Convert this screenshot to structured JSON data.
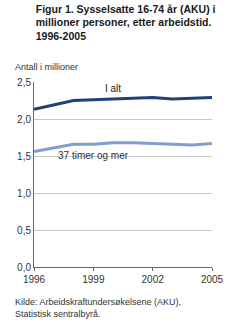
{
  "chart_data": {
    "type": "line",
    "title": "Figur 1. Sysselsatte 16-74 år (AKU) i millioner personer, etter arbeidstid. 1996-2005",
    "ylabel": "Antall i millioner",
    "source": "Kilde: Arbeidskraftundersøkelsene (AKU), Statistisk sentralbyrå.",
    "x": [
      1996,
      1997,
      1998,
      1999,
      2000,
      2001,
      2002,
      2003,
      2004,
      2005
    ],
    "series": [
      {
        "name": "I alt",
        "color": "#1f3f7a",
        "values": [
          2.13,
          2.19,
          2.25,
          2.26,
          2.27,
          2.28,
          2.29,
          2.27,
          2.28,
          2.29
        ]
      },
      {
        "name": "37 timer og mer",
        "color": "#7f9fcf",
        "values": [
          1.56,
          1.61,
          1.66,
          1.66,
          1.68,
          1.68,
          1.67,
          1.65,
          1.65,
          1.67
        ]
      }
    ],
    "xlim": [
      1996,
      2005
    ],
    "xticks": [
      1996,
      1999,
      2002,
      2005
    ],
    "ylim": [
      0,
      2.5
    ],
    "yticks": [
      {
        "value": 0,
        "label": "0,0"
      },
      {
        "value": 0.5,
        "label": "0,5"
      },
      {
        "value": 1.0,
        "label": "1,0"
      },
      {
        "value": 1.5,
        "label": "1,5"
      },
      {
        "value": 2.0,
        "label": "2,0"
      },
      {
        "value": 2.5,
        "label": "2,5"
      }
    ],
    "grid": true
  }
}
